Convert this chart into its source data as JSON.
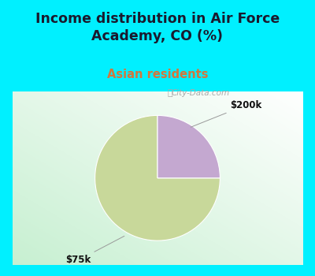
{
  "title": "Income distribution in Air Force\nAcademy, CO (%)",
  "subtitle": "Asian residents",
  "slices": [
    75,
    25
  ],
  "labels": [
    "$75k",
    "$200k"
  ],
  "colors": [
    "#c8d89a",
    "#c4a8d0"
  ],
  "bg_cyan": "#00f0ff",
  "title_color": "#1a1a2e",
  "subtitle_color": "#d4763b",
  "label_color": "#111111",
  "startangle": 90,
  "figsize": [
    4.0,
    3.5
  ],
  "dpi": 100,
  "watermark": "City-Data.com"
}
